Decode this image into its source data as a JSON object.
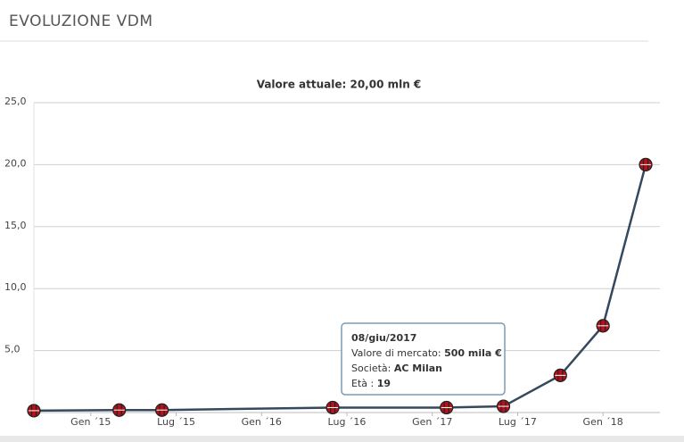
{
  "header": {
    "title": "EVOLUZIONE VDM"
  },
  "chart_data": {
    "type": "line",
    "title": "Valore attuale: 20,00 mln €",
    "x": [
      "2014-09",
      "2015-03",
      "2015-06",
      "2016-06",
      "2017-02",
      "2017-06",
      "2017-10",
      "2018-01",
      "2018-04"
    ],
    "series": [
      {
        "color": "#34495e",
        "marker_color": "#b5121b",
        "values": [
          0.15,
          0.2,
          0.2,
          0.4,
          0.4,
          0.5,
          3,
          7,
          20
        ]
      }
    ],
    "xlim": [
      "2014-09",
      "2018-05"
    ],
    "xticks": [
      {
        "value": "2015-01",
        "label": "Gen ´15"
      },
      {
        "value": "2015-07",
        "label": "Lug ´15"
      },
      {
        "value": "2016-01",
        "label": "Gen ´16"
      },
      {
        "value": "2016-07",
        "label": "Lug ´16"
      },
      {
        "value": "2017-01",
        "label": "Gen ´17"
      },
      {
        "value": "2017-07",
        "label": "Lug ´17"
      },
      {
        "value": "2018-01",
        "label": "Gen ´18"
      }
    ],
    "ylim": [
      0,
      25
    ],
    "yticks": [
      {
        "value": 5,
        "label": "5,0"
      },
      {
        "value": 10,
        "label": "10,0"
      },
      {
        "value": 15,
        "label": "15,0"
      },
      {
        "value": 20,
        "label": "20,0"
      },
      {
        "value": 25,
        "label": "25,0"
      }
    ],
    "grid": true,
    "tooltip": {
      "date": "08/giu/2017",
      "market_label": "Valore di mercato:",
      "market_value": "500 mila €",
      "club_label": "Società:",
      "club": "AC Milan",
      "age_label": "Età :",
      "age": "19"
    }
  }
}
